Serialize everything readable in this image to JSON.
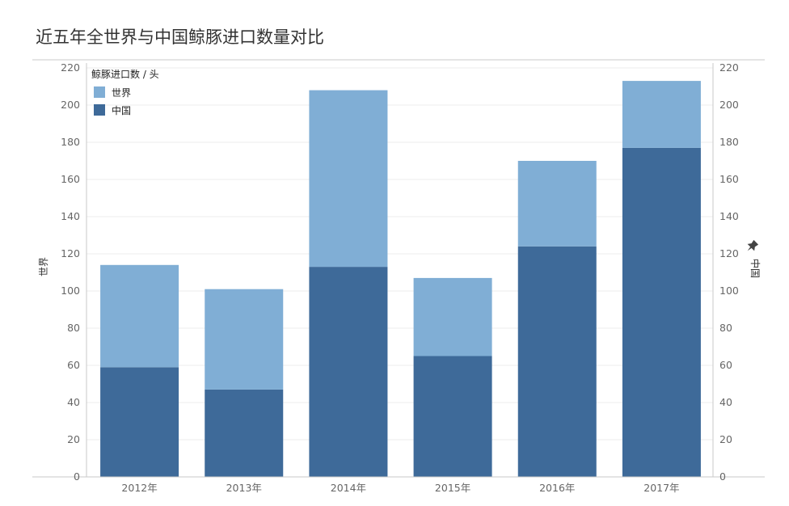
{
  "title": "近五年全世界与中国鲸豚进口数量对比",
  "colors": {
    "world": "#80aed5",
    "china": "#3e6a99",
    "grid": "#eeeeee",
    "axis": "#c8c8c8",
    "tick_text": "#666666"
  },
  "chart_data": {
    "type": "bar",
    "stacked": true,
    "title": "近五年全世界与中国鲸豚进口数量对比",
    "categories": [
      "2012年",
      "2013年",
      "2014年",
      "2015年",
      "2016年",
      "2017年"
    ],
    "series": [
      {
        "name": "中国",
        "values": [
          59,
          47,
          113,
          65,
          124,
          177
        ]
      },
      {
        "name": "世界",
        "values": [
          55,
          54,
          95,
          42,
          46,
          36
        ]
      }
    ],
    "totals": [
      114,
      101,
      208,
      107,
      170,
      213
    ],
    "ylabel": "世界",
    "y2label": "中国",
    "ylim": [
      0,
      220
    ],
    "y2lim": [
      0,
      220
    ],
    "yticks": [
      0,
      20,
      40,
      60,
      80,
      100,
      120,
      140,
      160,
      180,
      200,
      220
    ],
    "legend": {
      "title": "鲸豚进口数 / 头",
      "placement": "top-left",
      "entries": [
        "世界",
        "中国"
      ]
    },
    "grid": true
  }
}
